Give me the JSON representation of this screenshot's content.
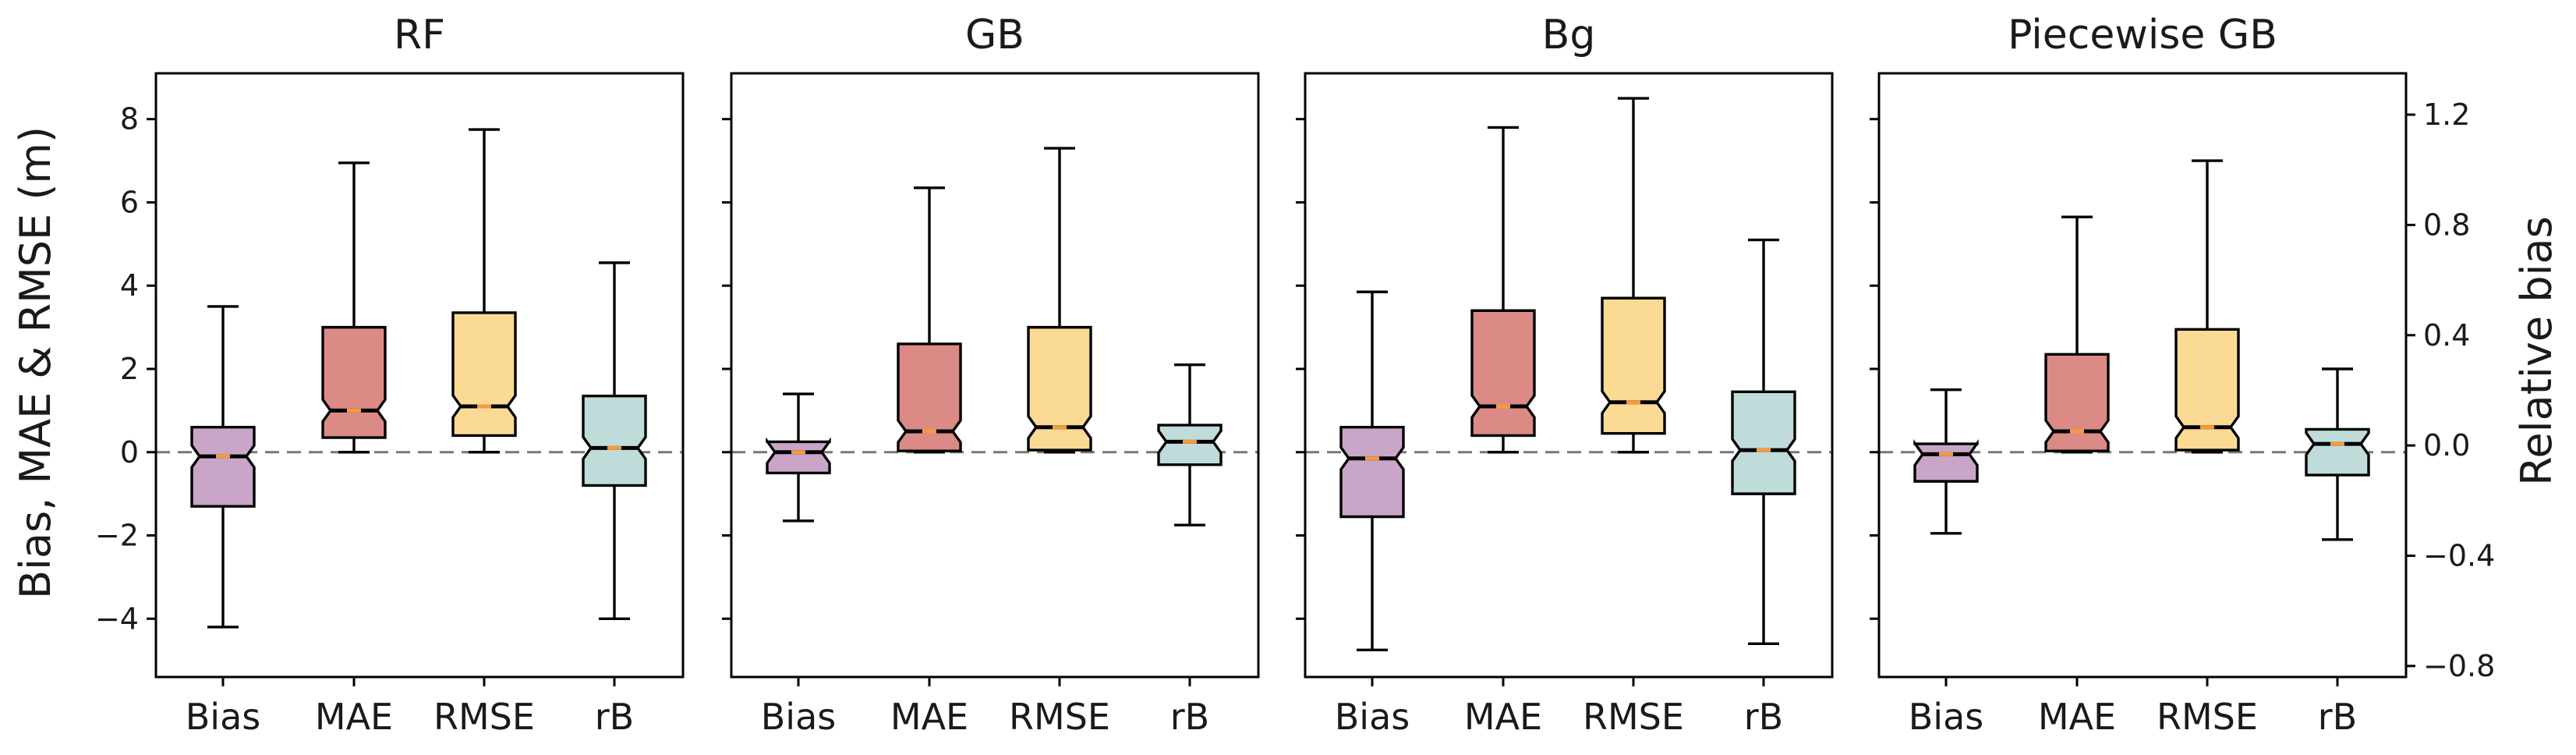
{
  "chart_data": {
    "type": "box",
    "ylabel_left": "Bias, MAE & RMSE (m)",
    "ylabel_right": "Relative bias",
    "left_ylim": [
      -5.4,
      9.1
    ],
    "left_ticks": [
      -4,
      -2,
      0,
      2,
      4,
      6,
      8
    ],
    "left_tick_labels": [
      "−4",
      "−2",
      "0",
      "2",
      "4",
      "6",
      "8"
    ],
    "right_ylim": [
      -0.84,
      1.35
    ],
    "right_ticks": [
      -0.8,
      -0.4,
      0.0,
      0.4,
      0.8,
      1.2
    ],
    "right_tick_labels": [
      "−0.8",
      "−0.4",
      "0.0",
      "0.4",
      "0.8",
      "1.2"
    ],
    "reference_line": 0,
    "colors": {
      "Bias": "#c9a6c7",
      "MAE": "#db8a86",
      "RMSE": "#fbdb94",
      "rB": "#bfdcda",
      "median": "#f39b41",
      "notch_edge": "#000000"
    },
    "panels": [
      {
        "title": "RF",
        "categories": [
          "Bias",
          "MAE",
          "RMSE",
          "rB"
        ],
        "boxes": [
          {
            "name": "Bias",
            "whislo": -4.2,
            "q1": -1.3,
            "med": -0.1,
            "q3": 0.6,
            "whishi": 3.5
          },
          {
            "name": "MAE",
            "whislo": 0.0,
            "q1": 0.35,
            "med": 1.0,
            "q3": 3.0,
            "whishi": 6.95
          },
          {
            "name": "RMSE",
            "whislo": 0.0,
            "q1": 0.4,
            "med": 1.1,
            "q3": 3.35,
            "whishi": 7.75
          },
          {
            "name": "rB",
            "whislo": -4.0,
            "q1": -0.8,
            "med": 0.1,
            "q3": 1.35,
            "whishi": 4.55
          }
        ]
      },
      {
        "title": "GB",
        "categories": [
          "Bias",
          "MAE",
          "RMSE",
          "rB"
        ],
        "boxes": [
          {
            "name": "Bias",
            "whislo": -1.65,
            "q1": -0.5,
            "med": 0.0,
            "q3": 0.25,
            "whishi": 1.4
          },
          {
            "name": "MAE",
            "whislo": 0.0,
            "q1": 0.03,
            "med": 0.5,
            "q3": 2.6,
            "whishi": 6.35
          },
          {
            "name": "RMSE",
            "whislo": 0.0,
            "q1": 0.05,
            "med": 0.6,
            "q3": 3.0,
            "whishi": 7.3
          },
          {
            "name": "rB",
            "whislo": -1.75,
            "q1": -0.3,
            "med": 0.25,
            "q3": 0.65,
            "whishi": 2.1
          }
        ]
      },
      {
        "title": "Bg",
        "categories": [
          "Bias",
          "MAE",
          "RMSE",
          "rB"
        ],
        "boxes": [
          {
            "name": "Bias",
            "whislo": -4.75,
            "q1": -1.55,
            "med": -0.15,
            "q3": 0.6,
            "whishi": 3.85
          },
          {
            "name": "MAE",
            "whislo": 0.0,
            "q1": 0.4,
            "med": 1.1,
            "q3": 3.4,
            "whishi": 7.8
          },
          {
            "name": "RMSE",
            "whislo": 0.0,
            "q1": 0.45,
            "med": 1.2,
            "q3": 3.7,
            "whishi": 8.5
          },
          {
            "name": "rB",
            "whislo": -4.6,
            "q1": -1.0,
            "med": 0.05,
            "q3": 1.45,
            "whishi": 5.1
          }
        ]
      },
      {
        "title": "Piecewise GB",
        "categories": [
          "Bias",
          "MAE",
          "RMSE",
          "rB"
        ],
        "boxes": [
          {
            "name": "Bias",
            "whislo": -1.95,
            "q1": -0.7,
            "med": -0.05,
            "q3": 0.2,
            "whishi": 1.5
          },
          {
            "name": "MAE",
            "whislo": 0.0,
            "q1": 0.03,
            "med": 0.5,
            "q3": 2.35,
            "whishi": 5.65
          },
          {
            "name": "RMSE",
            "whislo": 0.0,
            "q1": 0.05,
            "med": 0.6,
            "q3": 2.95,
            "whishi": 7.0
          },
          {
            "name": "rB",
            "whislo": -2.1,
            "q1": -0.55,
            "med": 0.2,
            "q3": 0.55,
            "whishi": 2.0
          }
        ]
      }
    ]
  }
}
